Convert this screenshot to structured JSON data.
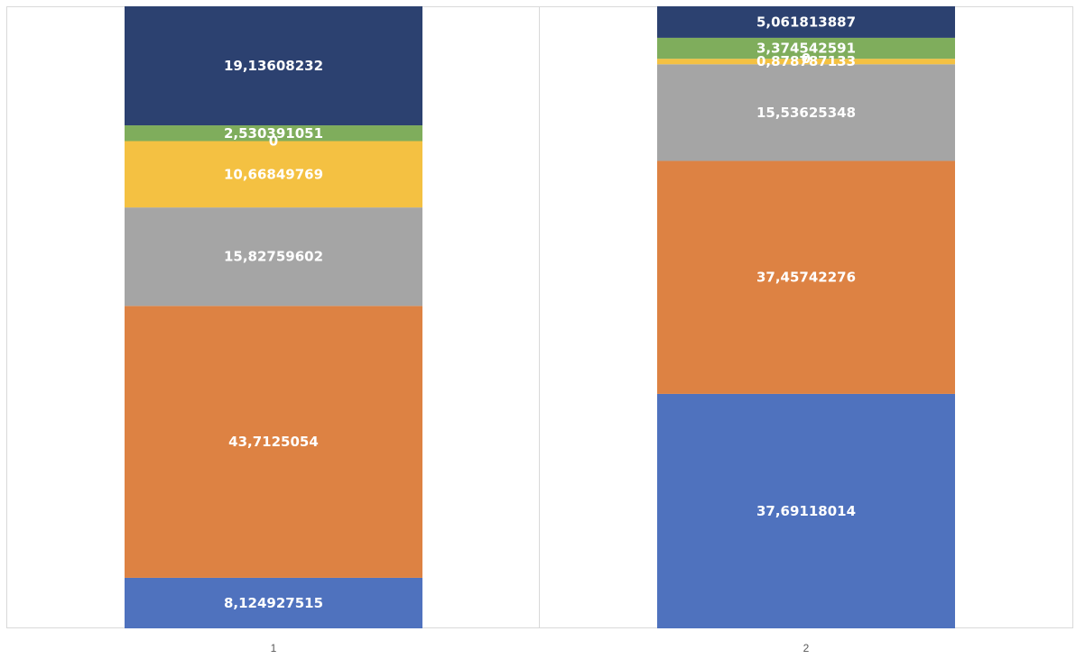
{
  "chart_data": {
    "type": "bar",
    "stacked": true,
    "categories": [
      "1",
      "2"
    ],
    "series": [
      {
        "values": [
          8.124927515,
          37.69118014
        ],
        "labels": [
          "8,124927515",
          "37,69118014"
        ],
        "color": "#4F72BE"
      },
      {
        "values": [
          43.7125054,
          37.45742276
        ],
        "labels": [
          "43,7125054",
          "37,45742276"
        ],
        "color": "#DD8243"
      },
      {
        "values": [
          15.82759602,
          15.53625348
        ],
        "labels": [
          "15,82759602",
          "15,53625348"
        ],
        "color": "#A5A5A5"
      },
      {
        "values": [
          10.66849769,
          0.878787133
        ],
        "labels": [
          "10,66849769",
          "0,878787133"
        ],
        "color": "#F4C142"
      },
      {
        "values": [
          0,
          0
        ],
        "labels": [
          "0",
          "0"
        ],
        "color": "#4F72BE"
      },
      {
        "values": [
          2.530391051,
          3.374542591
        ],
        "labels": [
          "2,530391051",
          "3,374542591"
        ],
        "color": "#7FAD5C"
      },
      {
        "values": [
          19.13608232,
          5.061813887
        ],
        "labels": [
          "19,13608232",
          "5,061813887"
        ],
        "color": "#2C4170"
      }
    ],
    "ylim": [
      0,
      100
    ],
    "grid": false,
    "legend": "none",
    "title": "",
    "xlabel": "",
    "ylabel": ""
  }
}
